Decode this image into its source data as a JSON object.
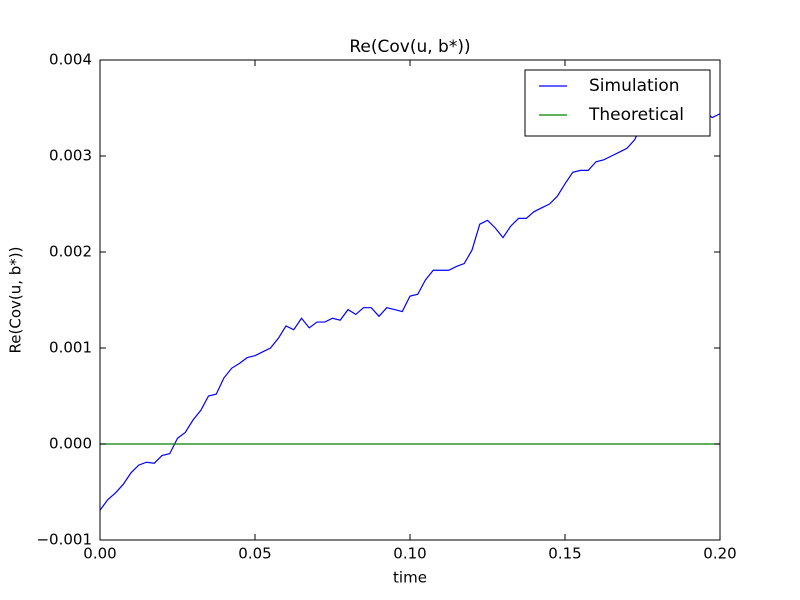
{
  "chart_data": {
    "type": "line",
    "title": "Re(Cov(u, b*))",
    "xlabel": "time",
    "ylabel": "Re(Cov(u, b*))",
    "x": [
      0,
      0.0025,
      0.005,
      0.0075,
      0.01,
      0.0125,
      0.015,
      0.0175,
      0.02,
      0.0225,
      0.025,
      0.0275,
      0.03,
      0.0325,
      0.035,
      0.0375,
      0.04,
      0.0425,
      0.045,
      0.0475,
      0.05,
      0.0525,
      0.055,
      0.0575,
      0.06,
      0.0625,
      0.065,
      0.0675,
      0.07,
      0.0725,
      0.075,
      0.0775,
      0.08,
      0.0825,
      0.085,
      0.0875,
      0.09,
      0.0925,
      0.095,
      0.0975,
      0.1,
      0.1025,
      0.105,
      0.1075,
      0.11,
      0.1125,
      0.115,
      0.1175,
      0.12,
      0.1225,
      0.125,
      0.1275,
      0.13,
      0.1325,
      0.135,
      0.1375,
      0.14,
      0.1425,
      0.145,
      0.1475,
      0.15,
      0.1525,
      0.155,
      0.1575,
      0.16,
      0.1625,
      0.165,
      0.1675,
      0.17,
      0.1725,
      0.175,
      0.1775,
      0.18,
      0.1825,
      0.185,
      0.1875,
      0.19,
      0.1925,
      0.195,
      0.1975,
      0.2
    ],
    "series": [
      {
        "name": "Simulation",
        "color": "#0000ff",
        "values": [
          -0.00069,
          -0.00058,
          -0.00051,
          -0.00042,
          -0.0003,
          -0.00022,
          -0.00019,
          -0.0002,
          -0.00012,
          -0.0001,
          6e-05,
          0.00012,
          0.00025,
          0.00035,
          0.0005,
          0.00052,
          0.00069,
          0.00079,
          0.00084,
          0.0009,
          0.00092,
          0.00096,
          0.001,
          0.0011,
          0.00123,
          0.00119,
          0.00131,
          0.00121,
          0.00127,
          0.00127,
          0.00131,
          0.00129,
          0.0014,
          0.00135,
          0.00142,
          0.00142,
          0.00133,
          0.00142,
          0.0014,
          0.00138,
          0.00154,
          0.00156,
          0.00171,
          0.00181,
          0.00181,
          0.00181,
          0.00185,
          0.00188,
          0.00202,
          0.00229,
          0.00233,
          0.00225,
          0.00215,
          0.00227,
          0.00235,
          0.00235,
          0.00242,
          0.00246,
          0.0025,
          0.00258,
          0.00271,
          0.00283,
          0.00285,
          0.00285,
          0.00294,
          0.00296,
          0.003,
          0.00304,
          0.00308,
          0.00317,
          0.00335,
          0.0034,
          0.00346,
          0.00348,
          0.0035,
          0.00348,
          0.00352,
          0.00346,
          0.00346,
          0.0034,
          0.00344
        ]
      },
      {
        "name": "Theoretical",
        "color": "#008000",
        "values": [
          0,
          0,
          0,
          0,
          0,
          0,
          0,
          0,
          0,
          0,
          0,
          0,
          0,
          0,
          0,
          0,
          0,
          0,
          0,
          0,
          0,
          0,
          0,
          0,
          0,
          0,
          0,
          0,
          0,
          0,
          0,
          0,
          0,
          0,
          0,
          0,
          0,
          0,
          0,
          0,
          0,
          0,
          0,
          0,
          0,
          0,
          0,
          0,
          0,
          0,
          0,
          0,
          0,
          0,
          0,
          0,
          0,
          0,
          0,
          0,
          0,
          0,
          0,
          0,
          0,
          0,
          0,
          0,
          0,
          0,
          0,
          0,
          0,
          0,
          0,
          0,
          0,
          0,
          0,
          0,
          0
        ]
      }
    ],
    "xlim": [
      0,
      0.2
    ],
    "xticks": [
      {
        "value": 0,
        "label": "0.00"
      },
      {
        "value": 0.05,
        "label": "0.05"
      },
      {
        "value": 0.1,
        "label": "0.10"
      },
      {
        "value": 0.15,
        "label": "0.15"
      },
      {
        "value": 0.2,
        "label": "0.20"
      }
    ],
    "ylim": [
      -0.001,
      0.004
    ],
    "yticks": [
      {
        "value": -0.001,
        "label": "−0.001"
      },
      {
        "value": 0,
        "label": "0.000"
      },
      {
        "value": 0.001,
        "label": "0.001"
      },
      {
        "value": 0.002,
        "label": "0.002"
      },
      {
        "value": 0.003,
        "label": "0.003"
      },
      {
        "value": 0.004,
        "label": "0.004"
      }
    ],
    "grid": false,
    "legend": "upper right"
  }
}
